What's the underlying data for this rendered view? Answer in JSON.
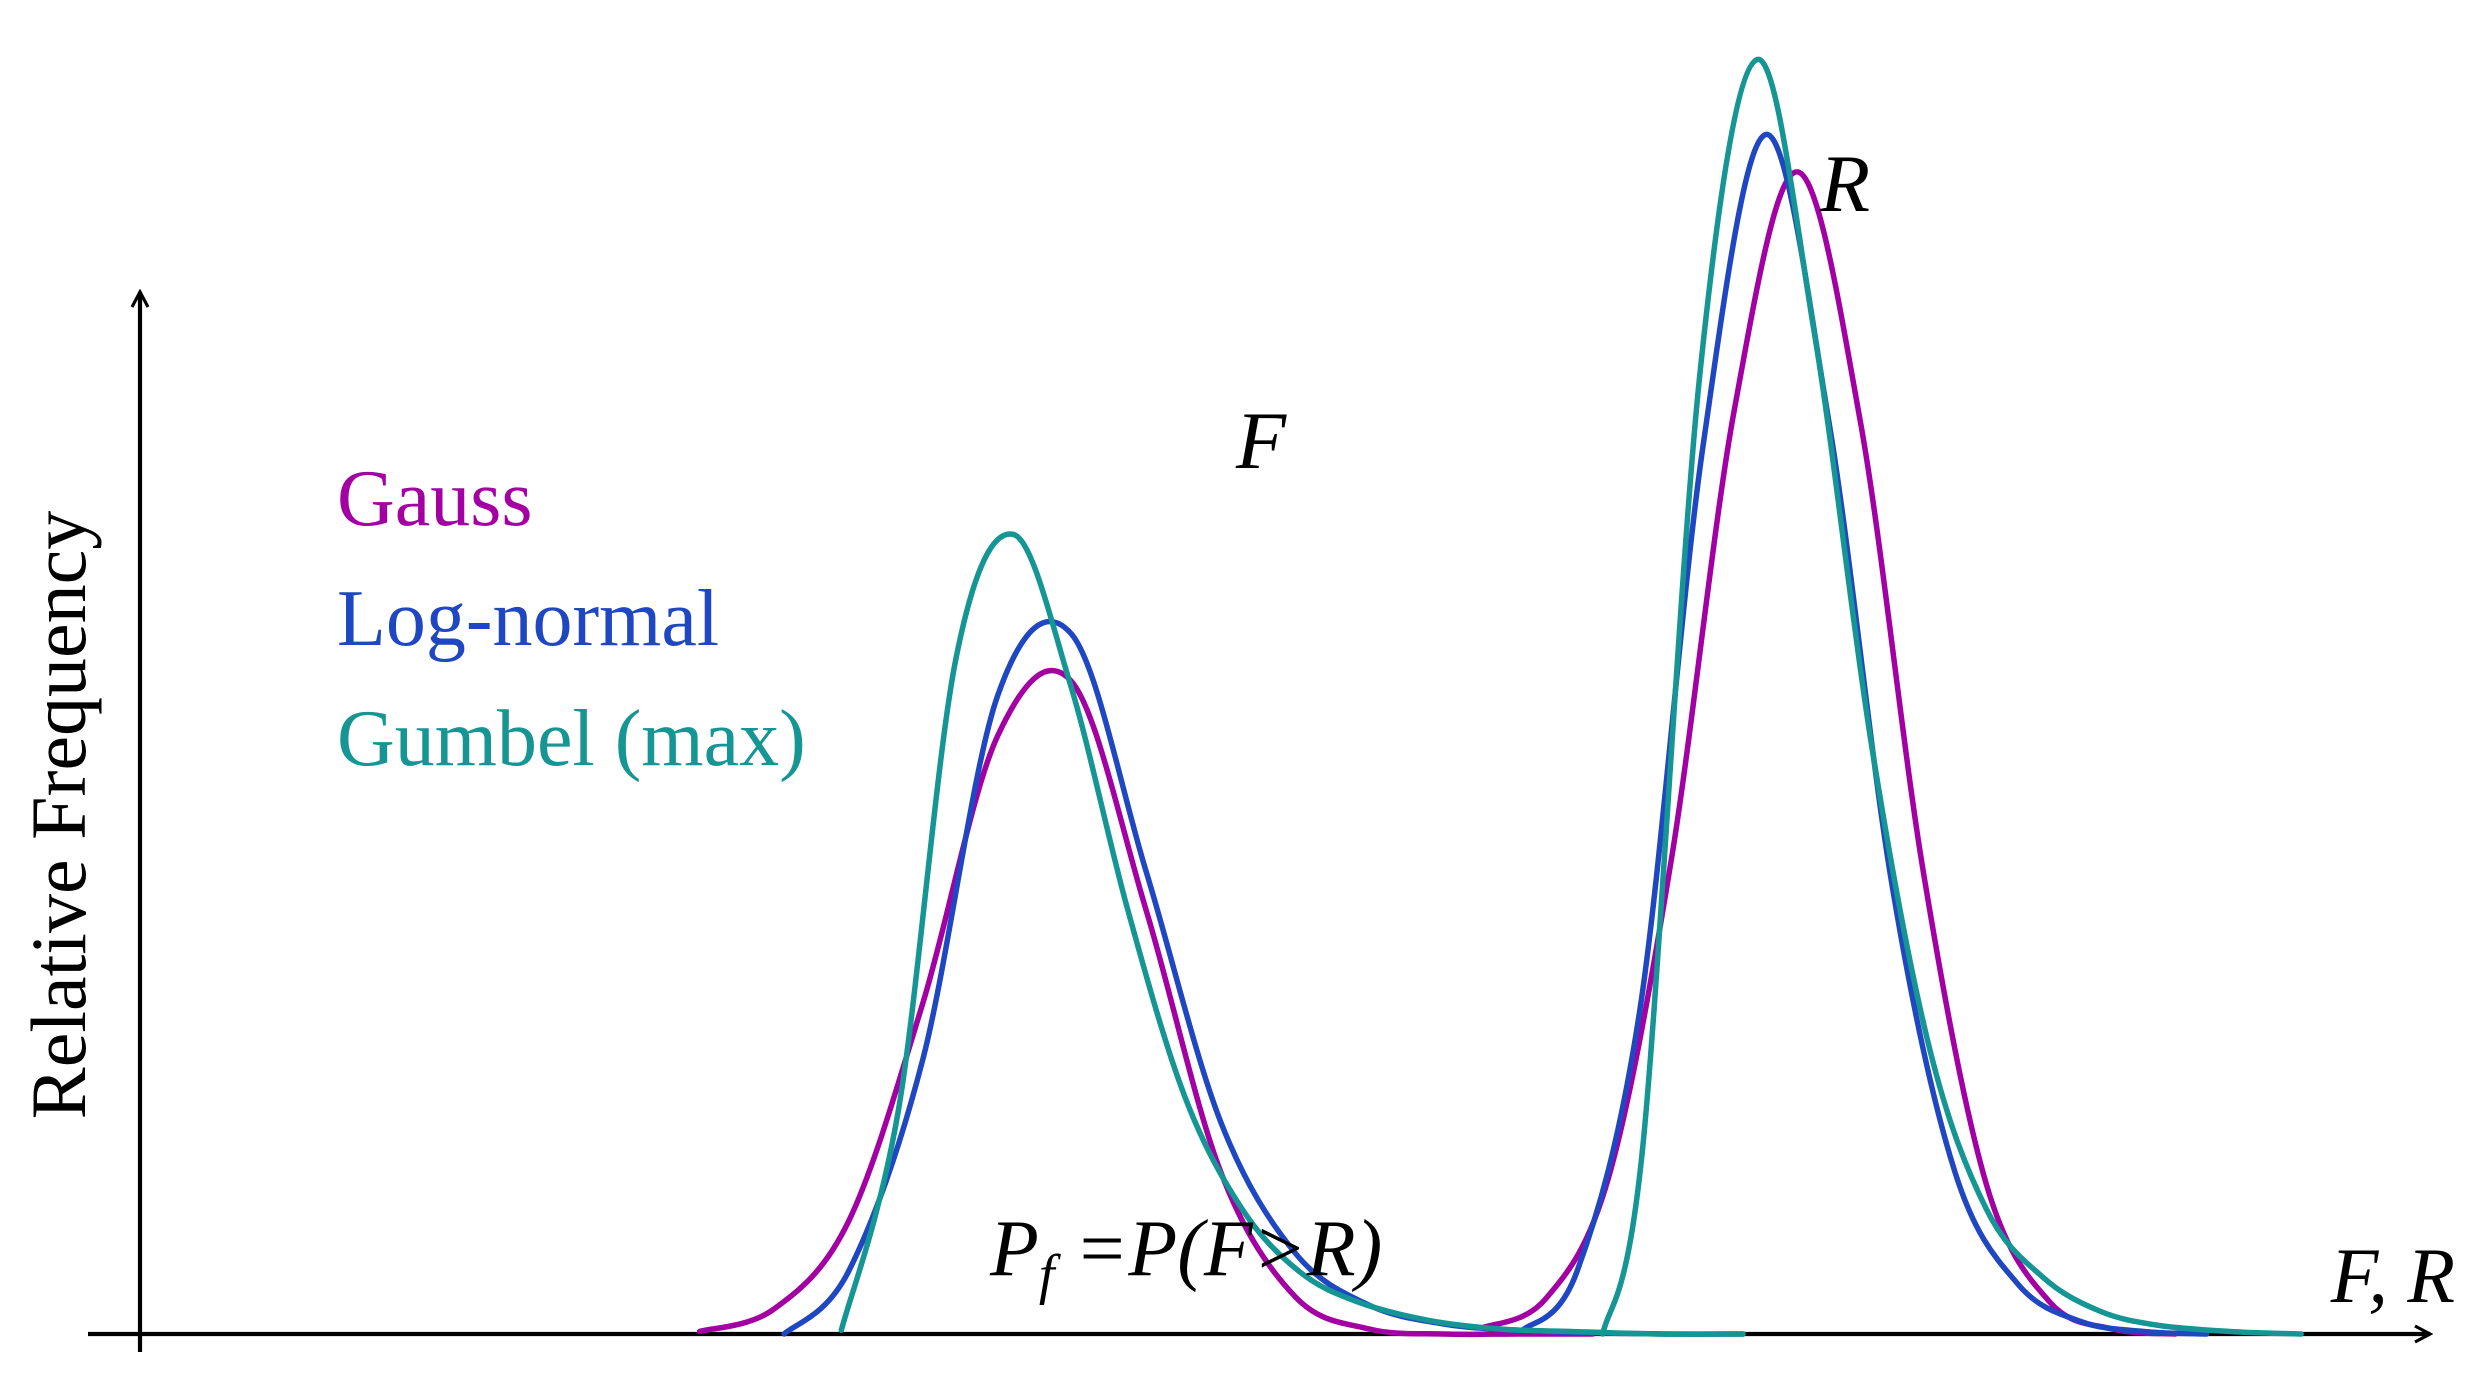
{
  "chart_data": {
    "type": "line",
    "title": "",
    "xlabel": "F, R",
    "ylabel": "Relative Frequency",
    "xlim": [
      0,
      16
    ],
    "ylim": [
      0,
      1.05
    ],
    "grid": false,
    "legend_position": "left-middle",
    "x_ticks": [],
    "y_ticks": [],
    "colors": {
      "Gauss": "#a300a3",
      "Log-normal": "#1f47c2",
      "Gumbel (max)": "#159594",
      "axis": "#000000"
    },
    "series": [
      {
        "name": "Gauss",
        "distribution": "gauss",
        "curves": [
          {
            "variable": "F",
            "x": [
              3.91,
              4.43,
              4.95,
              5.47,
              5.99,
              6.51,
              7.03,
              7.55,
              8.07,
              8.59,
              9.11,
              9.63,
              10.15
            ],
            "y": [
              0.002,
              0.02,
              0.09,
              0.265,
              0.478,
              0.522,
              0.339,
              0.13,
              0.03,
              0.004,
              0.0,
              0.0,
              0.0
            ]
          },
          {
            "variable": "R",
            "x": [
              9.38,
              9.82,
              10.26,
              10.7,
              11.14,
              11.58,
              12.02,
              12.46,
              12.9,
              13.34,
              13.78,
              14.22
            ],
            "y": [
              0.005,
              0.028,
              0.125,
              0.38,
              0.74,
              0.93,
              0.73,
              0.37,
              0.12,
              0.026,
              0.004,
              0.0
            ]
          }
        ]
      },
      {
        "name": "Log-normal",
        "distribution": "lognormal",
        "curves": [
          {
            "variable": "F",
            "x": [
              4.5,
              4.95,
              5.47,
              5.99,
              6.51,
              7.03,
              7.55,
              8.07,
              8.59,
              9.11,
              9.63,
              10.15,
              10.67,
              11.2
            ],
            "y": [
              0.0,
              0.05,
              0.22,
              0.51,
              0.56,
              0.37,
              0.17,
              0.065,
              0.023,
              0.008,
              0.003,
              0.001,
              0.0,
              0.0
            ]
          },
          {
            "variable": "R",
            "x": [
              9.66,
              10.04,
              10.48,
              10.92,
              11.36,
              11.8,
              12.24,
              12.68,
              13.12,
              13.56,
              14.0,
              14.44
            ],
            "y": [
              0.003,
              0.05,
              0.26,
              0.71,
              0.96,
              0.73,
              0.36,
              0.13,
              0.04,
              0.01,
              0.002,
              0.0
            ]
          }
        ]
      },
      {
        "name": "Gumbel (max)",
        "distribution": "gumbel_max",
        "curves": [
          {
            "variable": "F",
            "x": [
              4.9,
              5.3,
              5.7,
              6.1,
              6.5,
              6.9,
              7.3,
              7.7,
              8.1,
              8.5,
              9.0,
              9.5,
              10.0,
              10.6,
              11.2
            ],
            "y": [
              0.003,
              0.18,
              0.54,
              0.64,
              0.52,
              0.34,
              0.19,
              0.1,
              0.05,
              0.026,
              0.011,
              0.004,
              0.002,
              0.0,
              0.0
            ]
          },
          {
            "variable": "R",
            "x": [
              10.22,
              10.5,
              10.9,
              11.3,
              11.7,
              12.1,
              12.5,
              12.9,
              13.3,
              13.7,
              14.1,
              14.6,
              15.1
            ],
            "y": [
              0.0,
              0.15,
              0.77,
              1.02,
              0.8,
              0.47,
              0.23,
              0.1,
              0.045,
              0.018,
              0.007,
              0.002,
              0.0
            ]
          }
        ]
      }
    ],
    "annotations": {
      "F_label": "F",
      "R_label": "R",
      "pf_label": "P",
      "pf_subscript": "f",
      "pf_expression": " =P(F>R)"
    }
  }
}
